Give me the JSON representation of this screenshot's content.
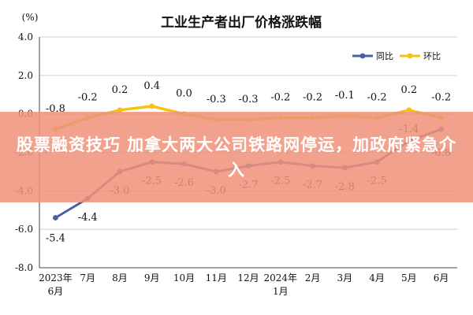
{
  "chart_data": {
    "type": "line",
    "title": "工业生产者出厂价格涨跌幅",
    "ylabel": "(%)",
    "xlabel": "",
    "ylim": [
      -8.0,
      4.0
    ],
    "yticks": [
      "4.0",
      "2.0",
      "0.0",
      "-2.0",
      "-4.0",
      "-6.0",
      "-8.0"
    ],
    "ytick_values": [
      4,
      2,
      0,
      -2,
      -4,
      -6,
      -8
    ],
    "categories": [
      [
        "2023年",
        "6月"
      ],
      [
        "7月"
      ],
      [
        "8月"
      ],
      [
        "9月"
      ],
      [
        "10月"
      ],
      [
        "11月"
      ],
      [
        "12月"
      ],
      [
        "2024年",
        "1月"
      ],
      [
        "2月"
      ],
      [
        "3月"
      ],
      [
        "4月"
      ],
      [
        "5月"
      ],
      [
        "6月"
      ]
    ],
    "grid": "horizontal",
    "legend_position": "top-right",
    "series": [
      {
        "name": "同比",
        "color": "#4a5fa8",
        "values": [
          -5.4,
          -4.4,
          -3.0,
          -2.5,
          -2.6,
          -3.0,
          -2.7,
          -2.5,
          -2.7,
          -2.8,
          -2.5,
          -1.4,
          -0.8
        ],
        "labels": [
          "-5.4",
          "-4.4",
          "-3.0",
          "-2.5",
          "-2.6",
          "-3.0",
          "-2.7",
          "-2.5",
          "-2.7",
          "-2.8",
          "-2.5",
          "-1.4",
          "-0.8"
        ]
      },
      {
        "name": "环比",
        "color": "#f2c40f",
        "values": [
          -0.8,
          -0.2,
          0.2,
          0.4,
          0.0,
          -0.3,
          -0.3,
          -0.2,
          -0.2,
          -0.1,
          -0.2,
          0.2,
          -0.2
        ],
        "labels": [
          "-0.8",
          "-0.2",
          "0.2",
          "0.4",
          "0.0",
          "-0.3",
          "-0.3",
          "-0.2",
          "-0.2",
          "-0.1",
          "-0.2",
          "0.2",
          "-0.2"
        ]
      }
    ]
  },
  "overlay": {
    "headline": "股票融资技巧 加拿大两大公司铁路网停运，加政府紧急介入",
    "color": "#f0927a"
  }
}
